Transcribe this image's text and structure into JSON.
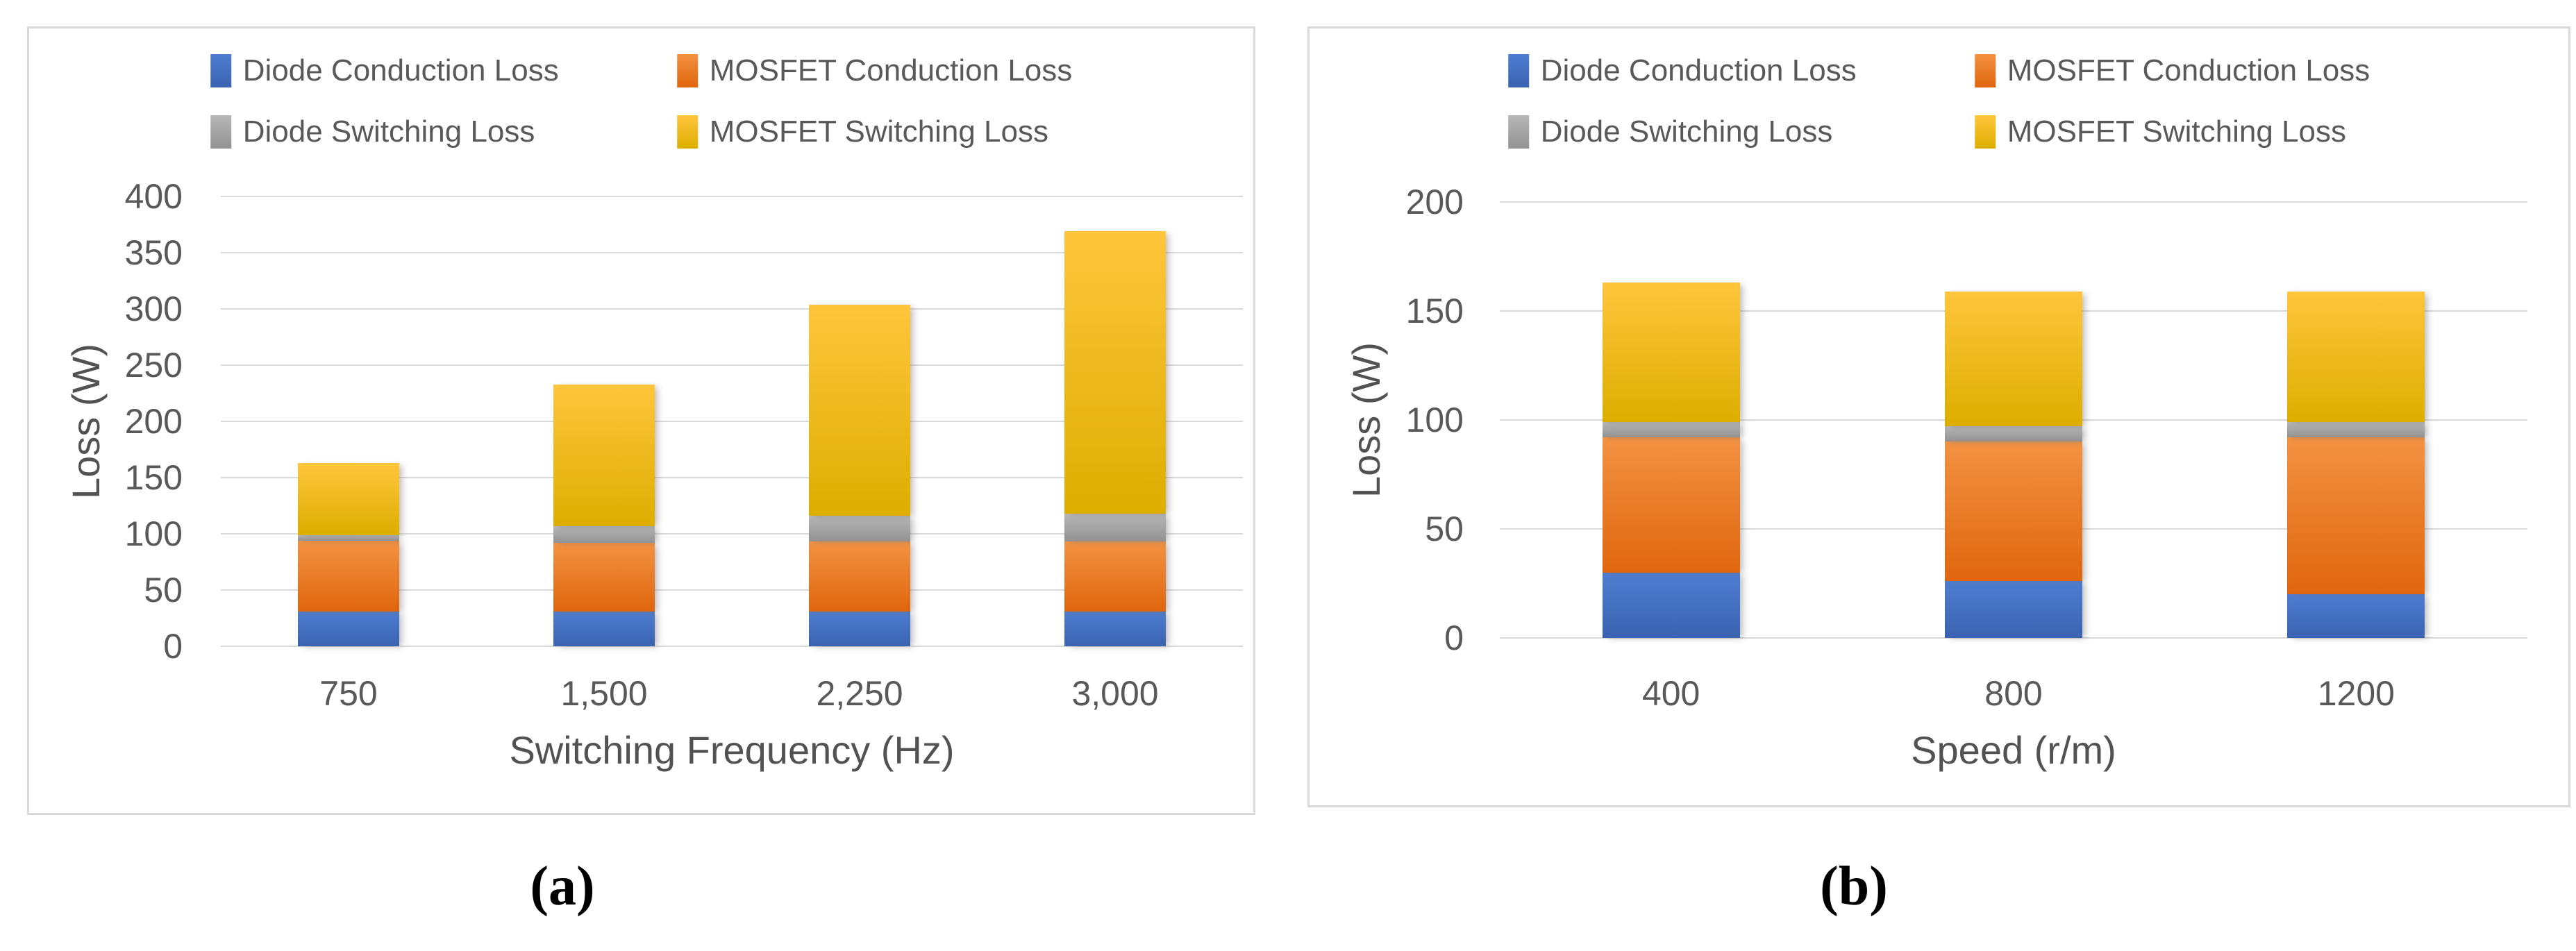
{
  "figure": {
    "captions": {
      "a": "(a)",
      "b": "(b)"
    }
  },
  "chart_data": [
    {
      "id": "a",
      "type": "bar",
      "stacked": true,
      "title": "",
      "xlabel": "Switching Frequency (Hz)",
      "ylabel": "Loss (W)",
      "categories": [
        "750",
        "1,500",
        "2,250",
        "3,000"
      ],
      "yticks": [
        "0",
        "50",
        "100",
        "150",
        "200",
        "250",
        "300",
        "350",
        "400"
      ],
      "ylim": [
        0,
        400
      ],
      "ytick_step": 50,
      "grid": true,
      "legend_position": "top",
      "series": [
        {
          "name": "Diode Conduction Loss",
          "legend_color": "#4472C4",
          "color_top": "#4E7DD1",
          "color_bottom": "#3A63B0",
          "values": [
            31,
            31,
            31,
            31
          ]
        },
        {
          "name": "MOSFET Conduction Loss",
          "legend_color": "#ED7D31",
          "color_top": "#F39242",
          "color_bottom": "#E0660E",
          "values": [
            63,
            61,
            62,
            62
          ]
        },
        {
          "name": "Diode Switching Loss",
          "legend_color": "#A5A5A5",
          "color_top": "#B7B7B7",
          "color_bottom": "#929292",
          "values": [
            5,
            15,
            23,
            25
          ]
        },
        {
          "name": "MOSFET Switching Loss",
          "legend_color": "#FFC000",
          "color_top": "#FFC53C",
          "color_bottom": "#DDAE00",
          "values": [
            64,
            126,
            188,
            251
          ]
        }
      ],
      "totals": [
        163,
        233,
        304,
        369
      ]
    },
    {
      "id": "b",
      "type": "bar",
      "stacked": true,
      "title": "",
      "xlabel": "Speed (r/m)",
      "ylabel": "Loss (W)",
      "categories": [
        "400",
        "800",
        "1200"
      ],
      "yticks": [
        "0",
        "50",
        "100",
        "150",
        "200"
      ],
      "ylim": [
        0,
        200
      ],
      "ytick_step": 50,
      "grid": true,
      "legend_position": "top",
      "series": [
        {
          "name": "Diode Conduction Loss",
          "legend_color": "#4472C4",
          "color_top": "#4E7DD1",
          "color_bottom": "#3A63B0",
          "values": [
            30,
            26,
            20
          ]
        },
        {
          "name": "MOSFET Conduction Loss",
          "legend_color": "#ED7D31",
          "color_top": "#F39242",
          "color_bottom": "#E0660E",
          "values": [
            62,
            64,
            72
          ]
        },
        {
          "name": "Diode Switching Loss",
          "legend_color": "#A5A5A5",
          "color_top": "#B7B7B7",
          "color_bottom": "#929292",
          "values": [
            7,
            7,
            7
          ]
        },
        {
          "name": "MOSFET Switching Loss",
          "legend_color": "#FFC000",
          "color_top": "#FFC53C",
          "color_bottom": "#DDAE00",
          "values": [
            64,
            62,
            60
          ]
        }
      ],
      "totals": [
        163,
        159,
        159
      ]
    }
  ]
}
